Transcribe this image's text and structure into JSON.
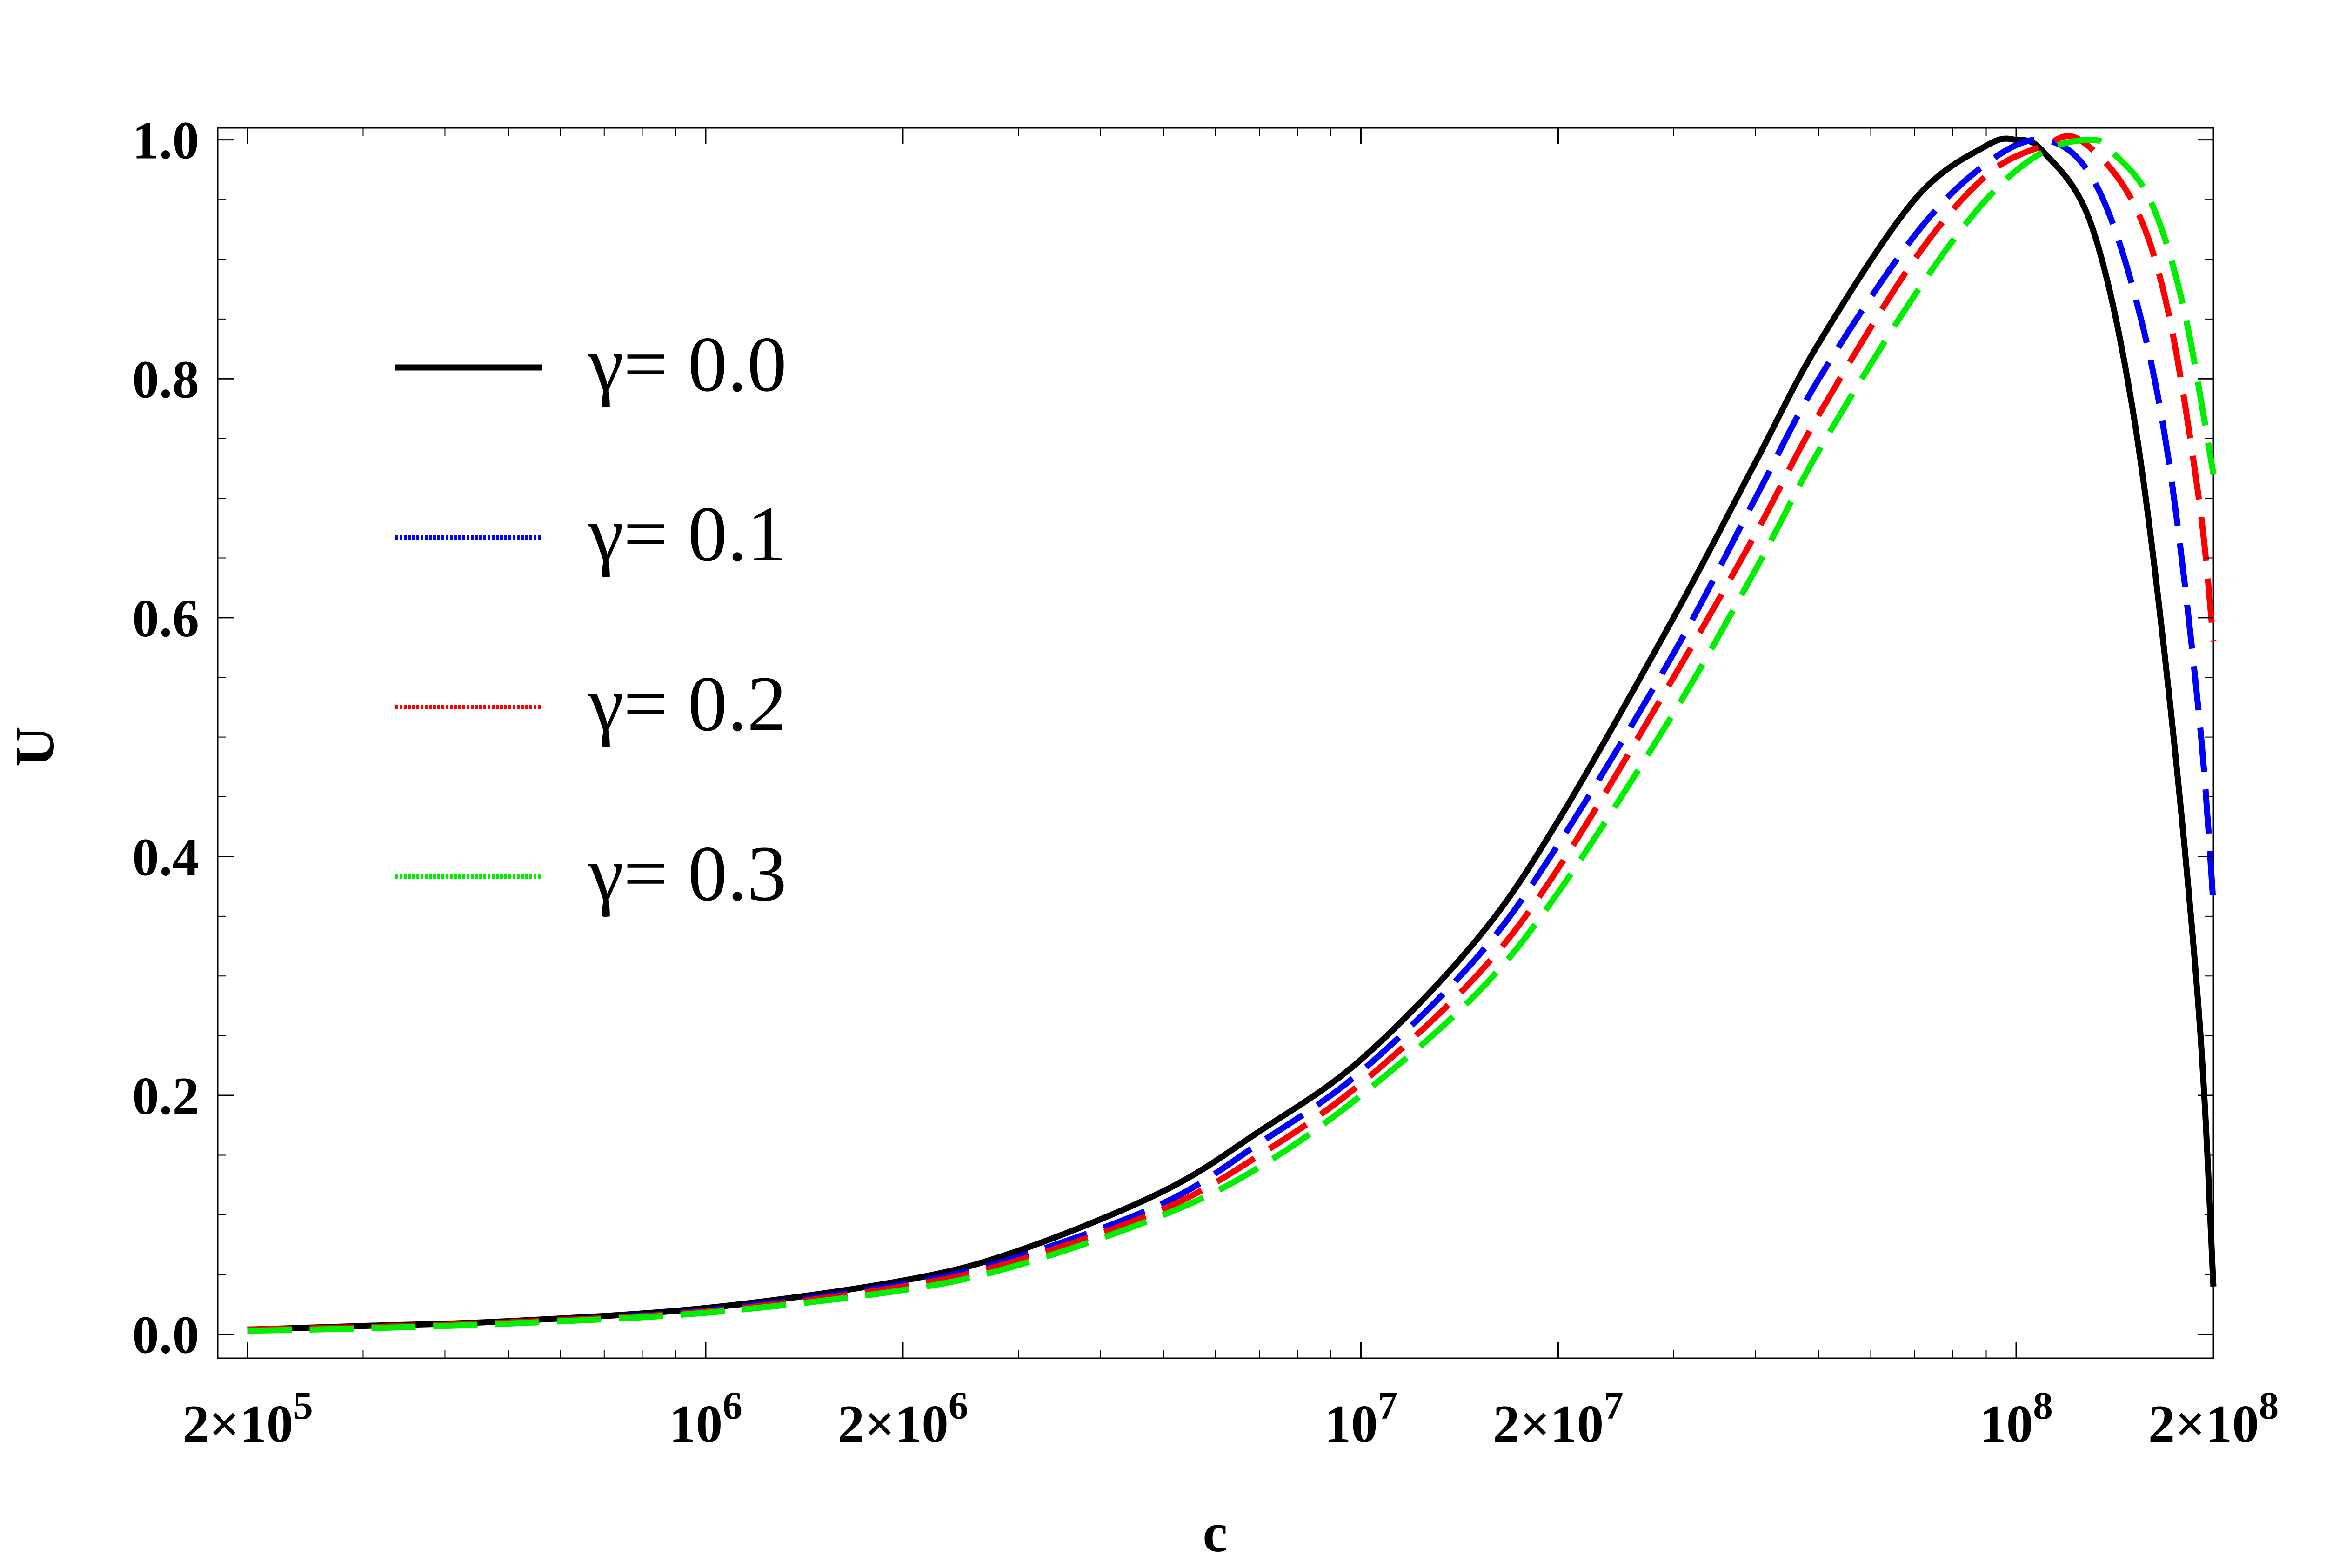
{
  "chart_data": {
    "type": "line",
    "title": "",
    "xlabel": "c",
    "ylabel": "U",
    "x_scale": "log",
    "xlim": [
      180000,
      200000000
    ],
    "ylim": [
      -0.02,
      1.01
    ],
    "x_ticks": [
      {
        "value": 200000,
        "mantissa": "2×10",
        "exponent": "5"
      },
      {
        "value": 1000000,
        "mantissa": "10",
        "exponent": "6"
      },
      {
        "value": 2000000,
        "mantissa": "2×10",
        "exponent": "6"
      },
      {
        "value": 10000000,
        "mantissa": "10",
        "exponent": "7"
      },
      {
        "value": 20000000,
        "mantissa": "2×10",
        "exponent": "7"
      },
      {
        "value": 100000000,
        "mantissa": "10",
        "exponent": "8"
      },
      {
        "value": 200000000,
        "mantissa": "2×10",
        "exponent": "8"
      }
    ],
    "y_ticks": [
      {
        "value": 0.0,
        "label": "0.0"
      },
      {
        "value": 0.2,
        "label": "0.2"
      },
      {
        "value": 0.4,
        "label": "0.4"
      },
      {
        "value": 0.6,
        "label": "0.6"
      },
      {
        "value": 0.8,
        "label": "0.8"
      },
      {
        "value": 1.0,
        "label": "1.0"
      }
    ],
    "grid": false,
    "legend_position": "upper-left",
    "series": [
      {
        "name": "γ= 0.0",
        "color": "#000000",
        "style": "solid",
        "x": [
          200000,
          300000,
          500000,
          1000000,
          2000000,
          3000000,
          5000000,
          7000000,
          10000000,
          15000000,
          20000000,
          30000000,
          40000000,
          50000000,
          70000000,
          90000000,
          100000000,
          110000000,
          130000000,
          150000000,
          170000000,
          190000000,
          200000000
        ],
        "y": [
          0.004,
          0.007,
          0.011,
          0.022,
          0.045,
          0.07,
          0.12,
          0.17,
          0.23,
          0.33,
          0.43,
          0.6,
          0.73,
          0.83,
          0.95,
          0.995,
          1.0,
          0.99,
          0.93,
          0.78,
          0.55,
          0.27,
          0.04
        ]
      },
      {
        "name": "γ= 0.1",
        "color": "#0000ff",
        "style": "dashed",
        "x": [
          200000,
          300000,
          500000,
          1000000,
          2000000,
          3000000,
          5000000,
          7000000,
          10000000,
          15000000,
          20000000,
          30000000,
          40000000,
          50000000,
          70000000,
          90000000,
          110000000,
          130000000,
          150000000,
          170000000,
          190000000,
          200000000
        ],
        "y": [
          0.004,
          0.006,
          0.01,
          0.02,
          0.042,
          0.065,
          0.11,
          0.16,
          0.22,
          0.315,
          0.41,
          0.57,
          0.7,
          0.8,
          0.92,
          0.98,
          1.0,
          0.97,
          0.88,
          0.74,
          0.52,
          0.36
        ]
      },
      {
        "name": "γ= 0.2",
        "color": "#ff0000",
        "style": "dashed",
        "x": [
          200000,
          300000,
          500000,
          1000000,
          2000000,
          3000000,
          5000000,
          7000000,
          10000000,
          15000000,
          20000000,
          30000000,
          40000000,
          50000000,
          70000000,
          90000000,
          110000000,
          125000000,
          150000000,
          170000000,
          190000000,
          200000000
        ],
        "y": [
          0.004,
          0.006,
          0.01,
          0.019,
          0.04,
          0.062,
          0.105,
          0.15,
          0.21,
          0.3,
          0.39,
          0.55,
          0.67,
          0.77,
          0.9,
          0.97,
          0.995,
          1.0,
          0.95,
          0.86,
          0.7,
          0.58
        ]
      },
      {
        "name": "γ= 0.3",
        "color": "#00ee00",
        "style": "dashed",
        "x": [
          200000,
          300000,
          500000,
          1000000,
          2000000,
          3000000,
          5000000,
          7000000,
          10000000,
          15000000,
          20000000,
          30000000,
          40000000,
          50000000,
          70000000,
          90000000,
          110000000,
          130000000,
          140000000,
          160000000,
          180000000,
          200000000
        ],
        "y": [
          0.003,
          0.005,
          0.009,
          0.018,
          0.037,
          0.058,
          0.1,
          0.14,
          0.2,
          0.285,
          0.37,
          0.52,
          0.64,
          0.74,
          0.87,
          0.95,
          0.99,
          1.0,
          0.99,
          0.95,
          0.86,
          0.72
        ]
      }
    ]
  }
}
